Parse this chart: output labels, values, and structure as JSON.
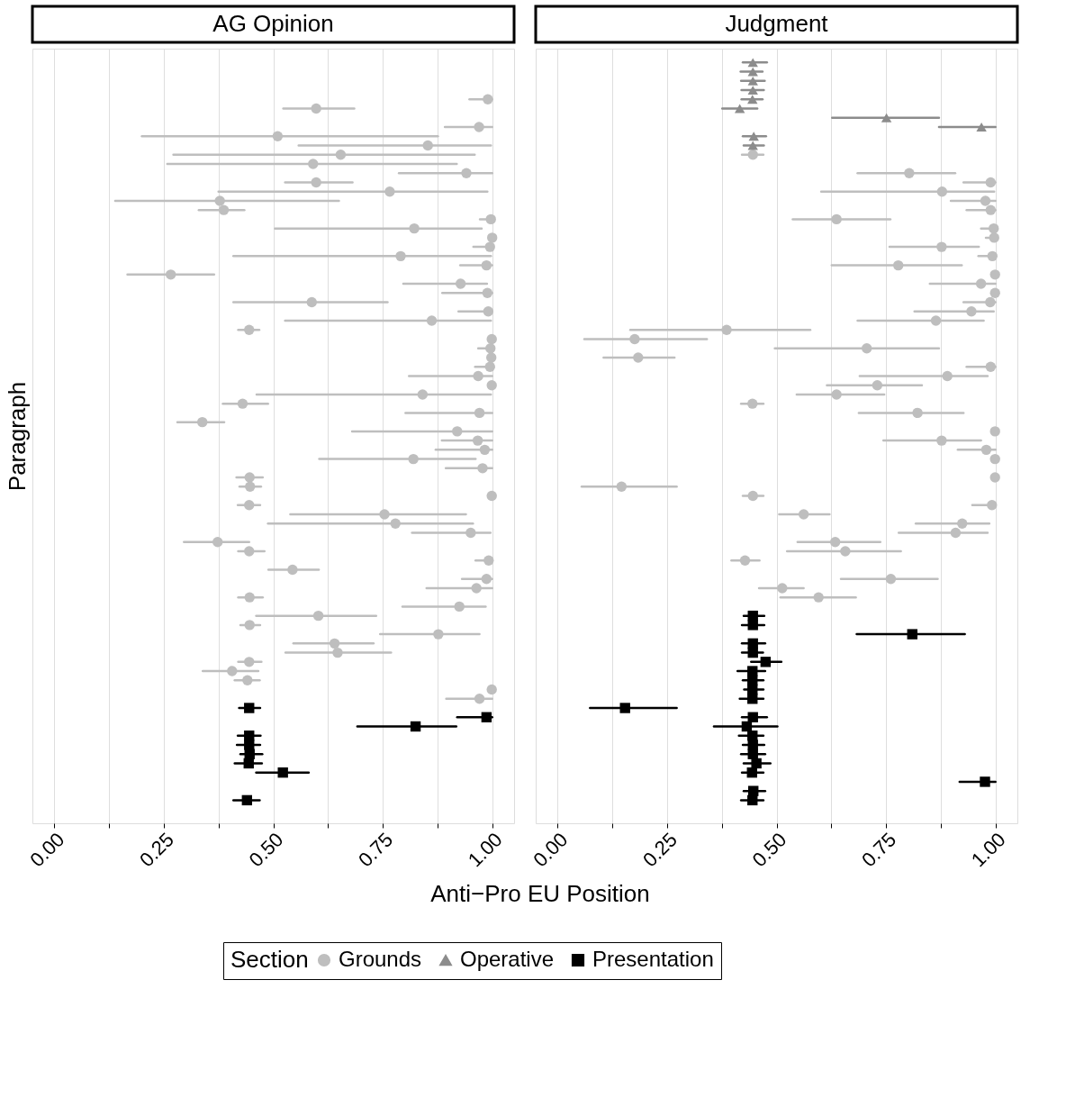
{
  "chart_data": [
    {
      "type": "scatter",
      "title": "AG Opinion",
      "orientation": "horizontal",
      "xlabel": "Anti−Pro EU Position",
      "ylabel": "Paragraph",
      "legend": "bottom",
      "legend_title": "Section",
      "categories": [
        null,
        null,
        null,
        null,
        null,
        null,
        null,
        null,
        null,
        null,
        null,
        null,
        null,
        null,
        null,
        null,
        null,
        null,
        null,
        null,
        null,
        null,
        null,
        null,
        null,
        null,
        null,
        null,
        null,
        null,
        null,
        null,
        null,
        null,
        null,
        null,
        null,
        null,
        null,
        null,
        null,
        null,
        null,
        null,
        null,
        null,
        null,
        null,
        null,
        null,
        null,
        null,
        null,
        null,
        null,
        null,
        null,
        null,
        null,
        null,
        null,
        null,
        null,
        null,
        null,
        null,
        null,
        null,
        null,
        null,
        null,
        null,
        null,
        null,
        null,
        null,
        null,
        null,
        null,
        null,
        null,
        null,
        null,
        null
      ],
      "xlim": [
        -0.05,
        1.05
      ],
      "xticks": [
        {
          "value": 0,
          "label": "0.00"
        },
        {
          "value": 0.125,
          "label": null
        },
        {
          "value": 0.25,
          "label": "0.25"
        },
        {
          "value": 0.375,
          "label": null
        },
        {
          "value": 0.5,
          "label": "0.50"
        },
        {
          "value": 0.625,
          "label": null
        },
        {
          "value": 0.75,
          "label": "0.75"
        },
        {
          "value": 0.875,
          "label": null
        },
        {
          "value": 1,
          "label": "1.00"
        }
      ],
      "grid": "x",
      "tick_labels": "x",
      "series": [
        {
          "name": "Grounds",
          "color": "#bebebe",
          "marker": "circle",
          "values": [
            null,
            null,
            null,
            null,
            null,
            0.99,
            0.598,
            null,
            0.97,
            0.51,
            0.853,
            0.654,
            0.591,
            0.941,
            0.598,
            0.766,
            0.378,
            0.387,
            0.997,
            0.822,
            1.0,
            0.995,
            0.791,
            0.987,
            0.266,
            0.928,
            0.989,
            0.588,
            0.991,
            0.862,
            0.445,
            0.999,
            0.996,
            0.998,
            0.995,
            0.968,
            0.999,
            0.841,
            0.43,
            0.971,
            0.338,
            0.92,
            0.967,
            0.983,
            0.82,
            0.978,
            0.446,
            0.447,
            0.999,
            0.445,
            0.754,
            0.779,
            0.951,
            0.373,
            0.445,
            0.992,
            0.544,
            0.987,
            0.964,
            0.446,
            0.925,
            0.603,
            0.446,
            0.877,
            0.64,
            0.647,
            0.445,
            0.406,
            0.441,
            0.999,
            0.971,
            null,
            null,
            null,
            null,
            null,
            null,
            null,
            null,
            null,
            null,
            null,
            null,
            null
          ],
          "errors": [
            null,
            null,
            null,
            null,
            null,
            [
              0.948,
              1.0
            ],
            [
              0.523,
              0.685
            ],
            null,
            [
              0.892,
              1.0
            ],
            [
              0.2,
              0.876
            ],
            [
              0.558,
              0.997
            ],
            [
              0.272,
              0.96
            ],
            [
              0.258,
              0.919
            ],
            [
              0.787,
              1.0
            ],
            [
              0.527,
              0.681
            ],
            [
              0.375,
              0.989
            ],
            [
              0.139,
              0.65
            ],
            [
              0.33,
              0.434
            ],
            [
              0.972,
              1.0
            ],
            [
              0.504,
              0.976
            ],
            null,
            [
              0.957,
              1.0
            ],
            [
              0.409,
              0.997
            ],
            [
              0.927,
              1.0
            ],
            [
              0.167,
              0.365
            ],
            [
              0.797,
              0.988
            ],
            [
              0.886,
              1.0
            ],
            [
              0.409,
              0.761
            ],
            [
              0.923,
              1.0
            ],
            [
              0.527,
              0.997
            ],
            [
              0.42,
              0.468
            ],
            null,
            [
              0.968,
              1.0
            ],
            null,
            [
              0.961,
              1.0
            ],
            [
              0.81,
              1.0
            ],
            null,
            [
              0.462,
              0.997
            ],
            [
              0.385,
              0.488
            ],
            [
              0.802,
              1.0
            ],
            [
              0.281,
              0.388
            ],
            [
              0.68,
              1.0
            ],
            [
              0.885,
              1.0
            ],
            [
              0.871,
              1.0
            ],
            [
              0.605,
              0.962
            ],
            [
              0.894,
              1.0
            ],
            [
              0.416,
              0.476
            ],
            [
              0.423,
              0.472
            ],
            null,
            [
              0.419,
              0.47
            ],
            [
              0.539,
              0.94
            ],
            [
              0.488,
              0.956
            ],
            [
              0.817,
              0.996
            ],
            [
              0.296,
              0.445
            ],
            [
              0.42,
              0.48
            ],
            [
              0.962,
              1.0
            ],
            [
              0.489,
              0.604
            ],
            [
              0.931,
              1.0
            ],
            [
              0.85,
              1.0
            ],
            [
              0.42,
              0.476
            ],
            [
              0.795,
              0.985
            ],
            [
              0.461,
              0.735
            ],
            [
              0.425,
              0.47
            ],
            [
              0.744,
              0.971
            ],
            [
              0.546,
              0.729
            ],
            [
              0.528,
              0.769
            ],
            [
              0.42,
              0.473
            ],
            [
              0.339,
              0.466
            ],
            [
              0.412,
              0.469
            ],
            null,
            [
              0.895,
              1.0
            ],
            null,
            null,
            null,
            null,
            null,
            null,
            null,
            null,
            null,
            null,
            null,
            null,
            null
          ]
        },
        {
          "name": "Presentation",
          "color": "#000000",
          "marker": "square",
          "values": [
            null,
            null,
            null,
            null,
            null,
            null,
            null,
            null,
            null,
            null,
            null,
            null,
            null,
            null,
            null,
            null,
            null,
            null,
            null,
            null,
            null,
            null,
            null,
            null,
            null,
            null,
            null,
            null,
            null,
            null,
            null,
            null,
            null,
            null,
            null,
            null,
            null,
            null,
            null,
            null,
            null,
            null,
            null,
            null,
            null,
            null,
            null,
            null,
            null,
            null,
            null,
            null,
            null,
            null,
            null,
            null,
            null,
            null,
            null,
            null,
            null,
            null,
            null,
            null,
            null,
            null,
            null,
            null,
            null,
            null,
            null,
            0.445,
            0.987,
            0.825,
            0.445,
            0.445,
            0.446,
            0.444,
            0.522,
            null,
            null,
            0.44,
            null,
            null
          ],
          "errors": [
            null,
            null,
            null,
            null,
            null,
            null,
            null,
            null,
            null,
            null,
            null,
            null,
            null,
            null,
            null,
            null,
            null,
            null,
            null,
            null,
            null,
            null,
            null,
            null,
            null,
            null,
            null,
            null,
            null,
            null,
            null,
            null,
            null,
            null,
            null,
            null,
            null,
            null,
            null,
            null,
            null,
            null,
            null,
            null,
            null,
            null,
            null,
            null,
            null,
            null,
            null,
            null,
            null,
            null,
            null,
            null,
            null,
            null,
            null,
            null,
            null,
            null,
            null,
            null,
            null,
            null,
            null,
            null,
            null,
            null,
            null,
            [
              0.422,
              0.47
            ],
            [
              0.92,
              1.0
            ],
            [
              0.692,
              0.918
            ],
            [
              0.419,
              0.471
            ],
            [
              0.417,
              0.47
            ],
            [
              0.425,
              0.475
            ],
            [
              0.412,
              0.474
            ],
            [
              0.461,
              0.581
            ],
            null,
            null,
            [
              0.409,
              0.469
            ],
            null,
            null
          ]
        }
      ]
    },
    {
      "type": "scatter",
      "title": "Judgment",
      "orientation": "horizontal",
      "legend": "bottom",
      "categories": [
        null,
        null,
        null,
        null,
        null,
        null,
        null,
        null,
        null,
        null,
        null,
        null,
        null,
        null,
        null,
        null,
        null,
        null,
        null,
        null,
        null,
        null,
        null,
        null,
        null,
        null,
        null,
        null,
        null,
        null,
        null,
        null,
        null,
        null,
        null,
        null,
        null,
        null,
        null,
        null,
        null,
        null,
        null,
        null,
        null,
        null,
        null,
        null,
        null,
        null,
        null,
        null,
        null,
        null,
        null,
        null,
        null,
        null,
        null,
        null,
        null,
        null,
        null,
        null,
        null,
        null,
        null,
        null,
        null,
        null,
        null,
        null,
        null,
        null,
        null,
        null,
        null,
        null,
        null,
        null,
        null,
        null,
        null,
        null
      ],
      "xlim": [
        -0.05,
        1.05
      ],
      "xticks": [
        {
          "value": 0,
          "label": "0.00"
        },
        {
          "value": 0.125,
          "label": null
        },
        {
          "value": 0.25,
          "label": "0.25"
        },
        {
          "value": 0.375,
          "label": null
        },
        {
          "value": 0.5,
          "label": "0.50"
        },
        {
          "value": 0.625,
          "label": null
        },
        {
          "value": 0.75,
          "label": "0.75"
        },
        {
          "value": 0.875,
          "label": null
        },
        {
          "value": 1,
          "label": "1.00"
        }
      ],
      "grid": "x",
      "tick_labels": "x",
      "series": [
        {
          "name": "Grounds",
          "color": "#bebebe",
          "marker": "circle",
          "values": [
            null,
            null,
            null,
            null,
            null,
            null,
            null,
            null,
            null,
            null,
            null,
            0.446,
            null,
            0.803,
            0.989,
            0.878,
            0.977,
            0.989,
            0.637,
            0.996,
            0.997,
            0.877,
            0.993,
            0.778,
            0.999,
            0.967,
            0.999,
            0.988,
            0.945,
            0.864,
            0.386,
            0.176,
            0.706,
            0.184,
            0.989,
            0.89,
            0.73,
            0.637,
            0.445,
            0.822,
            null,
            0.999,
            0.877,
            0.979,
            0.999,
            null,
            0.999,
            0.146,
            0.446,
            0.992,
            0.562,
            0.924,
            0.909,
            0.634,
            0.657,
            0.428,
            null,
            0.761,
            0.513,
            0.596,
            null,
            null,
            null,
            null,
            null,
            null,
            null,
            null,
            null,
            null,
            null,
            null,
            null,
            null,
            null,
            null,
            null,
            null,
            null,
            null,
            null,
            null,
            null,
            null
          ],
          "errors": [
            null,
            null,
            null,
            null,
            null,
            null,
            null,
            null,
            null,
            null,
            null,
            [
              0.421,
              0.47
            ],
            null,
            [
              0.685,
              0.908
            ],
            [
              0.927,
              1.0
            ],
            [
              0.602,
              0.997
            ],
            [
              0.898,
              1.0
            ],
            [
              0.934,
              1.0
            ],
            [
              0.537,
              0.76
            ],
            [
              0.967,
              1.0
            ],
            [
              0.978,
              1.0
            ],
            [
              0.758,
              0.962
            ],
            [
              0.961,
              1.0
            ],
            [
              0.626,
              0.923
            ],
            null,
            [
              0.85,
              1.0
            ],
            null,
            [
              0.927,
              1.0
            ],
            [
              0.815,
              0.996
            ],
            [
              0.685,
              0.973
            ],
            [
              0.166,
              0.577
            ],
            [
              0.061,
              0.341
            ],
            [
              0.496,
              0.871
            ],
            [
              0.105,
              0.267
            ],
            [
              0.934,
              1.0
            ],
            [
              0.69,
              0.982
            ],
            [
              0.615,
              0.832
            ],
            [
              0.546,
              0.746
            ],
            [
              0.419,
              0.47
            ],
            [
              0.688,
              0.927
            ],
            null,
            null,
            [
              0.744,
              0.967
            ],
            [
              0.914,
              1.0
            ],
            null,
            null,
            null,
            [
              0.055,
              0.272
            ],
            [
              0.423,
              0.47
            ],
            [
              0.947,
              1.0
            ],
            [
              0.506,
              0.621
            ],
            [
              0.818,
              0.986
            ],
            [
              0.779,
              0.982
            ],
            [
              0.548,
              0.737
            ],
            [
              0.524,
              0.784
            ],
            [
              0.397,
              0.461
            ],
            null,
            [
              0.647,
              0.868
            ],
            [
              0.46,
              0.562
            ],
            [
              0.509,
              0.681
            ],
            null,
            null,
            null,
            null,
            null,
            null,
            null,
            null,
            null,
            null,
            null,
            null,
            null,
            null,
            null,
            null,
            null,
            null,
            null,
            null,
            null,
            null,
            null,
            null
          ]
        },
        {
          "name": "Operative",
          "color": "#8c8c8c",
          "marker": "triangle",
          "values": [
            null,
            0.446,
            0.446,
            0.446,
            0.446,
            0.445,
            0.416,
            0.751,
            0.968,
            0.448,
            0.446,
            null,
            null,
            null,
            null,
            null,
            null,
            null,
            null,
            null,
            null,
            null,
            null,
            null,
            null,
            null,
            null,
            null,
            null,
            null,
            null,
            null,
            null,
            null,
            null,
            null,
            null,
            null,
            null,
            null,
            null,
            null,
            null,
            null,
            null,
            null,
            null,
            null,
            null,
            null,
            null,
            null,
            null,
            null,
            null,
            null,
            null,
            null,
            null,
            null,
            null,
            null,
            null,
            null,
            null,
            null,
            null,
            null,
            null,
            null,
            null,
            null,
            null,
            null,
            null,
            null,
            null,
            null,
            null,
            null,
            null,
            null,
            null,
            null
          ],
          "errors": [
            null,
            [
              0.423,
              0.478
            ],
            [
              0.418,
              0.468
            ],
            [
              0.419,
              0.473
            ],
            [
              0.42,
              0.471
            ],
            [
              0.42,
              0.468
            ],
            [
              0.376,
              0.456
            ],
            [
              0.627,
              0.871
            ],
            [
              0.871,
              1.0
            ],
            [
              0.423,
              0.476
            ],
            [
              0.425,
              0.471
            ],
            null,
            null,
            null,
            null,
            null,
            null,
            null,
            null,
            null,
            null,
            null,
            null,
            null,
            null,
            null,
            null,
            null,
            null,
            null,
            null,
            null,
            null,
            null,
            null,
            null,
            null,
            null,
            null,
            null,
            null,
            null,
            null,
            null,
            null,
            null,
            null,
            null,
            null,
            null,
            null,
            null,
            null,
            null,
            null,
            null,
            null,
            null,
            null,
            null,
            null,
            null,
            null,
            null,
            null,
            null,
            null,
            null,
            null,
            null,
            null,
            null,
            null,
            null,
            null,
            null,
            null,
            null,
            null,
            null,
            null,
            null,
            null,
            null
          ]
        },
        {
          "name": "Presentation",
          "color": "#000000",
          "marker": "square",
          "values": [
            null,
            null,
            null,
            null,
            null,
            null,
            null,
            null,
            null,
            null,
            null,
            null,
            null,
            null,
            null,
            null,
            null,
            null,
            null,
            null,
            null,
            null,
            null,
            null,
            null,
            null,
            null,
            null,
            null,
            null,
            null,
            null,
            null,
            null,
            null,
            null,
            null,
            null,
            null,
            null,
            null,
            null,
            null,
            null,
            null,
            null,
            null,
            null,
            null,
            null,
            null,
            null,
            null,
            null,
            null,
            null,
            null,
            null,
            null,
            null,
            null,
            0.446,
            0.446,
            0.81,
            0.446,
            0.446,
            0.475,
            0.445,
            0.445,
            0.445,
            0.445,
            0.154,
            0.446,
            0.432,
            0.445,
            0.446,
            0.446,
            0.454,
            0.444,
            0.976,
            0.447,
            0.445,
            null,
            null
          ],
          "errors": [
            null,
            null,
            null,
            null,
            null,
            null,
            null,
            null,
            null,
            null,
            null,
            null,
            null,
            null,
            null,
            null,
            null,
            null,
            null,
            null,
            null,
            null,
            null,
            null,
            null,
            null,
            null,
            null,
            null,
            null,
            null,
            null,
            null,
            null,
            null,
            null,
            null,
            null,
            null,
            null,
            null,
            null,
            null,
            null,
            null,
            null,
            null,
            null,
            null,
            null,
            null,
            null,
            null,
            null,
            null,
            null,
            null,
            null,
            null,
            null,
            null,
            [
              0.425,
              0.472
            ],
            [
              0.421,
              0.472
            ],
            [
              0.683,
              0.93
            ],
            [
              0.421,
              0.474
            ],
            [
              0.421,
              0.469
            ],
            [
              0.442,
              0.511
            ],
            [
              0.411,
              0.474
            ],
            [
              0.423,
              0.47
            ],
            [
              0.426,
              0.47
            ],
            [
              0.416,
              0.47
            ],
            [
              0.074,
              0.272
            ],
            [
              0.421,
              0.478
            ],
            [
              0.357,
              0.502
            ],
            [
              0.414,
              0.47
            ],
            [
              0.423,
              0.472
            ],
            [
              0.419,
              0.474
            ],
            [
              0.425,
              0.486
            ],
            [
              0.421,
              0.47
            ],
            [
              0.918,
              1.0
            ],
            [
              0.425,
              0.474
            ],
            [
              0.419,
              0.47
            ],
            null,
            null
          ]
        }
      ]
    }
  ]
}
